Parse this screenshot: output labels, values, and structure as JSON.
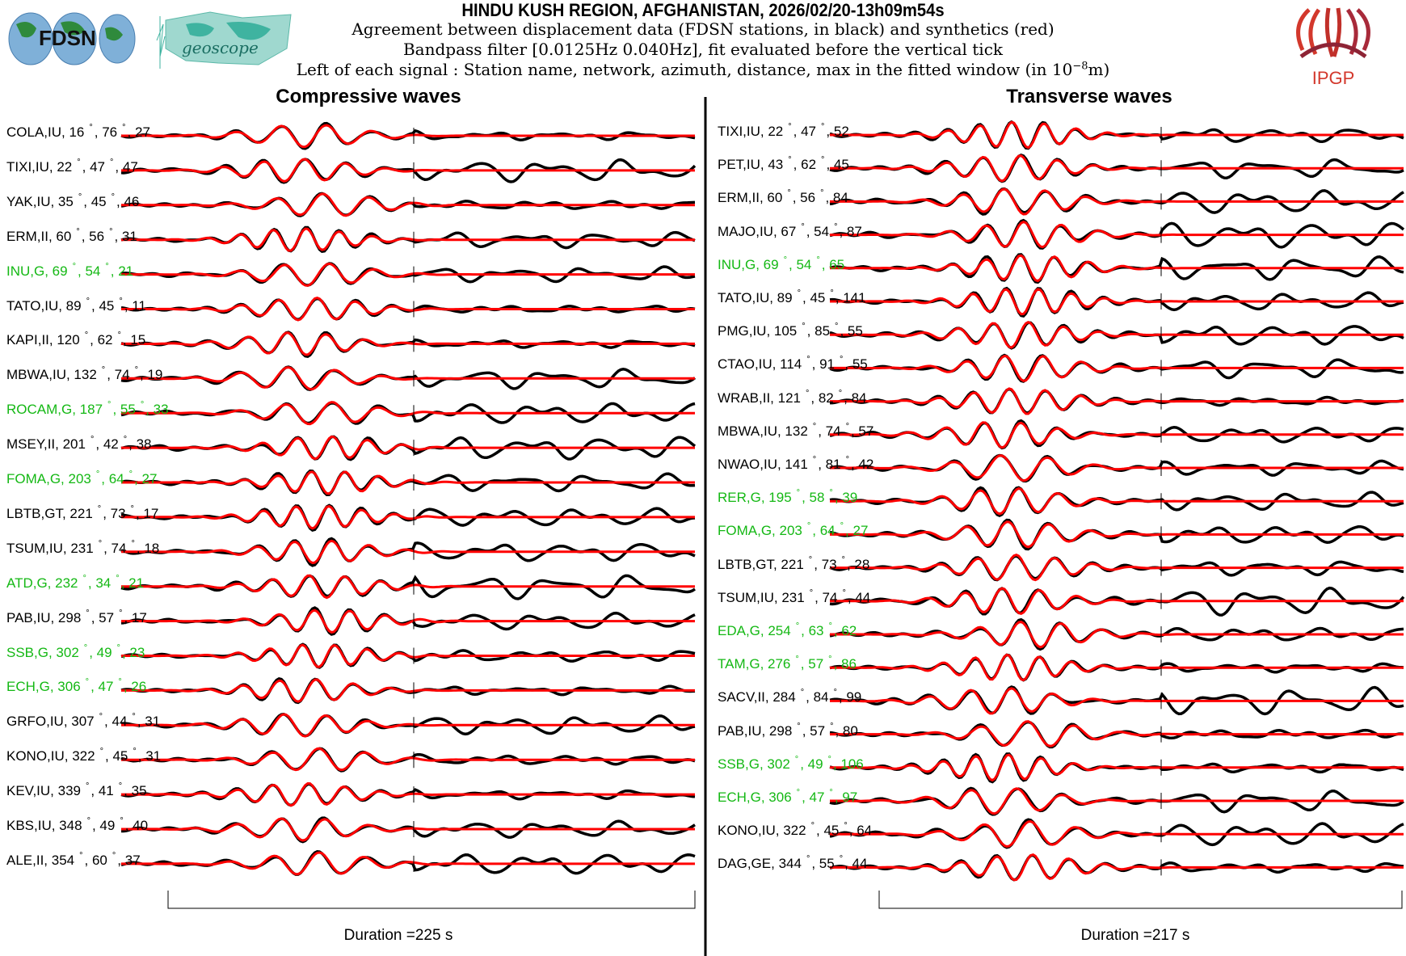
{
  "header": {
    "title": "HINDU KUSH REGION, AFGHANISTAN, 2026/02/20-13h09m54s",
    "line1": "Agreement between displacement data (FDSN stations, in black) and synthetics (red)",
    "line2": "Bandpass filter [0.0125Hz 0.040Hz], fit evaluated before the vertical tick",
    "line3_pre": "Left of each signal : Station name, network, azimuth, distance, max in the fitted window (in 10",
    "line3_exp": "−8",
    "line3_post": "m)"
  },
  "logos": {
    "fdsn": "FDSN",
    "geoscope": "geoscope",
    "ipgp": "IPGP"
  },
  "colors": {
    "data": "#000000",
    "synthetic": "#ff0000",
    "geoscope_label": "#14b814"
  },
  "chart_data": [
    {
      "type": "line",
      "title": "Compressive waves",
      "footer": "Duration =225 s",
      "duration_s": 225,
      "stations": [
        {
          "name": "COLA,IU, 16",
          "az": ", 76",
          "max": ", 27",
          "g": false
        },
        {
          "name": "TIXI,IU, 22",
          "az": ", 47",
          "max": ", 47",
          "g": false
        },
        {
          "name": "YAK,IU, 35",
          "az": ", 45",
          "max": ", 46",
          "g": false
        },
        {
          "name": "ERM,II, 60",
          "az": ", 56",
          "max": ", 31",
          "g": false
        },
        {
          "name": "INU,G, 69",
          "az": ", 54",
          "max": ", 21",
          "g": true
        },
        {
          "name": "TATO,IU, 89",
          "az": ", 45",
          "max": ", 11",
          "g": false
        },
        {
          "name": "KAPI,II, 120",
          "az": ", 62",
          "max": ", 15",
          "g": false
        },
        {
          "name": "MBWA,IU, 132",
          "az": ", 74",
          "max": ", 19",
          "g": false
        },
        {
          "name": "ROCAM,G, 187",
          "az": ", 55",
          "max": ", 33",
          "g": true
        },
        {
          "name": "MSEY,II, 201",
          "az": ", 42",
          "max": ", 38",
          "g": false
        },
        {
          "name": "FOMA,G, 203",
          "az": ", 64",
          "max": ", 27",
          "g": true
        },
        {
          "name": "LBTB,GT, 221",
          "az": ", 73",
          "max": ", 17",
          "g": false
        },
        {
          "name": "TSUM,IU, 231",
          "az": ", 74",
          "max": ", 18",
          "g": false
        },
        {
          "name": "ATD,G, 232",
          "az": ", 34",
          "max": ", 21",
          "g": true
        },
        {
          "name": "PAB,IU, 298",
          "az": ", 57",
          "max": ", 17",
          "g": false
        },
        {
          "name": "SSB,G, 302",
          "az": ", 49",
          "max": ", 23",
          "g": true
        },
        {
          "name": "ECH,G, 306",
          "az": ", 47",
          "max": ", 26",
          "g": true
        },
        {
          "name": "GRFO,IU, 307",
          "az": ", 44",
          "max": ", 31",
          "g": false
        },
        {
          "name": "KONO,IU, 322",
          "az": ", 45",
          "max": ", 31",
          "g": false
        },
        {
          "name": "KEV,IU, 339",
          "az": ", 41",
          "max": ", 35",
          "g": false
        },
        {
          "name": "KBS,IU, 348",
          "az": ", 49",
          "max": ", 40",
          "g": false
        },
        {
          "name": "ALE,II, 354",
          "az": ", 60",
          "max": ", 37",
          "g": false
        }
      ]
    },
    {
      "type": "line",
      "title": "Transverse waves",
      "footer": "Duration =217 s",
      "duration_s": 217,
      "stations": [
        {
          "name": "TIXI,IU, 22",
          "az": ", 47",
          "max": ", 52",
          "g": false
        },
        {
          "name": "PET,IU, 43",
          "az": ", 62",
          "max": ", 45",
          "g": false
        },
        {
          "name": "ERM,II, 60",
          "az": ", 56",
          "max": ", 84",
          "g": false
        },
        {
          "name": "MAJO,IU, 67",
          "az": ", 54",
          "max": ", 87",
          "g": false
        },
        {
          "name": "INU,G, 69",
          "az": ", 54",
          "max": ", 65",
          "g": true
        },
        {
          "name": "TATO,IU, 89",
          "az": ", 45",
          "max": ", 141",
          "g": false
        },
        {
          "name": "PMG,IU, 105",
          "az": ", 85",
          "max": ", 55",
          "g": false
        },
        {
          "name": "CTAO,IU, 114",
          "az": ", 91",
          "max": ", 55",
          "g": false
        },
        {
          "name": "WRAB,II, 121",
          "az": ", 82",
          "max": ", 84",
          "g": false
        },
        {
          "name": "MBWA,IU, 132",
          "az": ", 74",
          "max": ", 57",
          "g": false
        },
        {
          "name": "NWAO,IU, 141",
          "az": ", 81",
          "max": ", 42",
          "g": false
        },
        {
          "name": "RER,G, 195",
          "az": ", 58",
          "max": ", 39",
          "g": true
        },
        {
          "name": "FOMA,G, 203",
          "az": ", 64",
          "max": ", 27",
          "g": true
        },
        {
          "name": "LBTB,GT, 221",
          "az": ", 73",
          "max": ", 28",
          "g": false
        },
        {
          "name": "TSUM,IU, 231",
          "az": ", 74",
          "max": ", 44",
          "g": false
        },
        {
          "name": "EDA,G, 254",
          "az": ", 63",
          "max": ", 62",
          "g": true
        },
        {
          "name": "TAM,G, 276",
          "az": ", 57",
          "max": ", 86",
          "g": true
        },
        {
          "name": "SACV,II, 284",
          "az": ", 84",
          "max": ", 99",
          "g": false
        },
        {
          "name": "PAB,IU, 298",
          "az": ", 57",
          "max": ", 80",
          "g": false
        },
        {
          "name": "SSB,G, 302",
          "az": ", 49",
          "max": ", 106",
          "g": true
        },
        {
          "name": "ECH,G, 306",
          "az": ", 47",
          "max": ", 97",
          "g": true
        },
        {
          "name": "KONO,IU, 322",
          "az": ", 45",
          "max": ", 64",
          "g": false
        },
        {
          "name": "DAG,GE, 344",
          "az": ", 55",
          "max": ", 44",
          "g": false
        }
      ]
    }
  ]
}
